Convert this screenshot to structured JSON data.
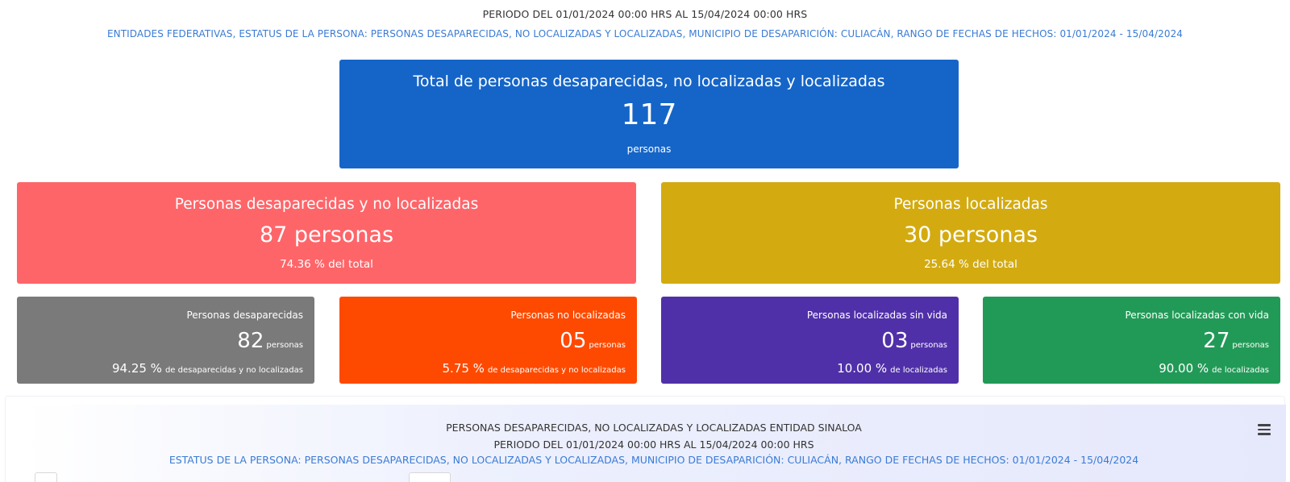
{
  "header": {
    "period": "PERIODO DEL 01/01/2024 00:00 HRS AL 15/04/2024 00:00 HRS",
    "filters": "ENTIDADES FEDERATIVAS, ESTATUS DE LA PERSONA: PERSONAS DESAPARECIDAS, NO LOCALIZADAS Y LOCALIZADAS, MUNICIPIO DE DESAPARICIÓN: CULIACÁN, RANGO DE FECHAS DE HECHOS: 01/01/2024 - 15/04/2024"
  },
  "total": {
    "title": "Total de personas desaparecidas, no localizadas y localizadas",
    "value": "117",
    "unit": "personas"
  },
  "summary": [
    {
      "title": "Personas desaparecidas y no localizadas",
      "value": "87 personas",
      "pct": "74.36 % del total",
      "color": "#fe6569"
    },
    {
      "title": "Personas localizadas",
      "value": "30 personas",
      "pct": "25.64 % del total",
      "color": "#d3ab11"
    }
  ],
  "details": [
    {
      "title": "Personas desaparecidas",
      "value": "82",
      "unit": "personas",
      "pct": "94.25 %",
      "pct_label": "de desaparecidas y no localizadas",
      "color": "#7a7a7a"
    },
    {
      "title": "Personas no localizadas",
      "value": "05",
      "unit": "personas",
      "pct": "5.75 %",
      "pct_label": "de desaparecidas y no localizadas",
      "color": "#fe4a00"
    },
    {
      "title": "Personas localizadas sin vida",
      "value": "03",
      "unit": "personas",
      "pct": "10.00 %",
      "pct_label": "de localizadas",
      "color": "#5030a8"
    },
    {
      "title": "Personas localizadas con vida",
      "value": "27",
      "unit": "personas",
      "pct": "90.00 %",
      "pct_label": "de localizadas",
      "color": "#229a57"
    }
  ],
  "chart_panel": {
    "title": "PERSONAS DESAPARECIDAS, NO LOCALIZADAS Y LOCALIZADAS ENTIDAD SINALOA",
    "period": "PERIODO DEL 01/01/2024 00:00 HRS AL 15/04/2024 00:00 HRS",
    "filters": "ESTATUS DE LA PERSONA: PERSONAS DESAPARECIDAS, NO LOCALIZADAS Y LOCALIZADAS, MUNICIPIO DE DESAPARICIÓN: CULIACÁN, RANGO DE FECHAS DE HECHOS: 01/01/2024 - 15/04/2024",
    "menu_icon": "hamburger-menu-icon"
  }
}
